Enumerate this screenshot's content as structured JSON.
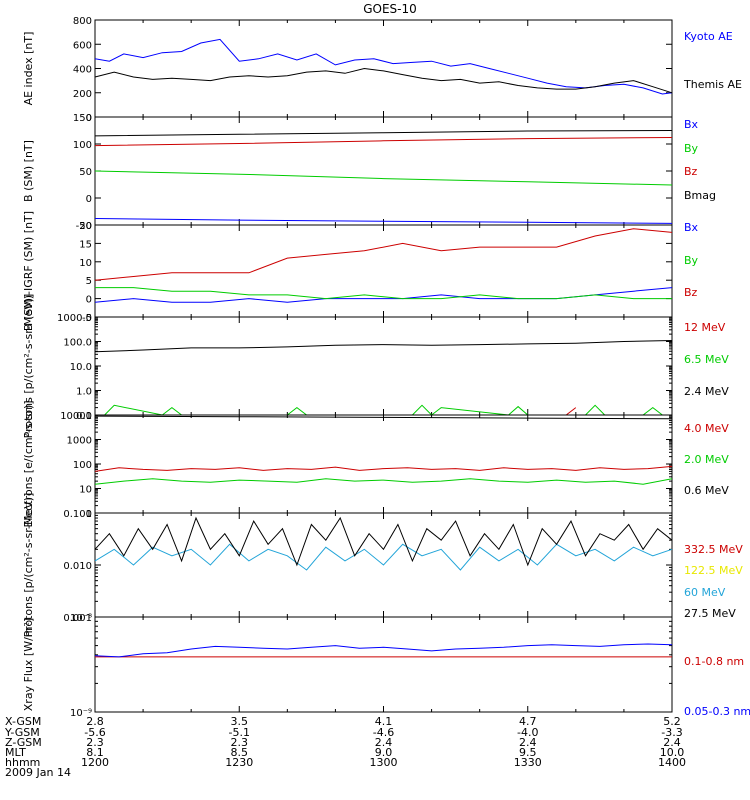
{
  "title": "GOES-10",
  "colors": {
    "black": "#000000",
    "blue": "#0000ff",
    "red": "#cc0000",
    "green": "#00cc00",
    "cyan": "#22a4d8",
    "yellow": "#e8e800"
  },
  "chart_data": [
    {
      "type": "line",
      "ylabel": "AE index [nT]",
      "ylim": [
        0,
        800
      ],
      "scale": "linear",
      "yticks": [
        {
          "v": 0,
          "label": "0"
        },
        {
          "v": 200,
          "label": "200"
        },
        {
          "v": 400,
          "label": "400"
        },
        {
          "v": 600,
          "label": "600"
        },
        {
          "v": 800,
          "label": "800"
        }
      ],
      "series": [
        {
          "name": "Kyoto AE",
          "color": "#0000ff",
          "x": [
            0,
            3,
            6,
            10,
            14,
            18,
            22,
            26,
            30,
            34,
            38,
            42,
            46,
            50,
            54,
            58,
            62,
            66,
            70,
            74,
            78,
            82,
            86,
            90,
            94,
            98,
            102,
            106,
            110,
            114,
            118,
            120
          ],
          "values": [
            480,
            460,
            520,
            490,
            530,
            540,
            610,
            640,
            460,
            480,
            520,
            470,
            520,
            430,
            470,
            480,
            440,
            450,
            460,
            420,
            440,
            400,
            360,
            320,
            280,
            250,
            240,
            260,
            270,
            240,
            190,
            200
          ]
        },
        {
          "name": "Themis AE",
          "color": "#000000",
          "x": [
            0,
            4,
            8,
            12,
            16,
            20,
            24,
            28,
            32,
            36,
            40,
            44,
            48,
            52,
            56,
            60,
            64,
            68,
            72,
            76,
            80,
            84,
            88,
            92,
            96,
            100,
            104,
            108,
            112,
            116,
            120
          ],
          "values": [
            330,
            370,
            330,
            310,
            320,
            310,
            300,
            330,
            340,
            330,
            340,
            370,
            380,
            360,
            400,
            380,
            350,
            320,
            300,
            310,
            280,
            290,
            260,
            240,
            230,
            230,
            250,
            280,
            300,
            250,
            200
          ]
        }
      ]
    },
    {
      "type": "line",
      "ylabel": "B (SM) [nT]",
      "ylim": [
        -50,
        150
      ],
      "scale": "linear",
      "yticks": [
        {
          "v": -50,
          "label": "-50"
        },
        {
          "v": 0,
          "label": "0"
        },
        {
          "v": 50,
          "label": "50"
        },
        {
          "v": 100,
          "label": "100"
        },
        {
          "v": 150,
          "label": "150"
        }
      ],
      "series": [
        {
          "name": "Bx",
          "color": "#0000ff",
          "x": [
            0,
            30,
            60,
            90,
            120
          ],
          "values": [
            -38,
            -41,
            -43,
            -45,
            -47
          ]
        },
        {
          "name": "By",
          "color": "#00cc00",
          "x": [
            0,
            30,
            60,
            90,
            120
          ],
          "values": [
            50,
            44,
            36,
            30,
            24
          ]
        },
        {
          "name": "Bz",
          "color": "#cc0000",
          "x": [
            0,
            30,
            60,
            90,
            120
          ],
          "values": [
            97,
            101,
            106,
            110,
            112
          ]
        },
        {
          "name": "Bmag",
          "color": "#000000",
          "x": [
            0,
            30,
            60,
            90,
            120
          ],
          "values": [
            115,
            118,
            121,
            124,
            125
          ]
        }
      ]
    },
    {
      "type": "line",
      "ylabel": "B (SM)-IGRF (SM) [nT]",
      "ylim": [
        -5,
        20
      ],
      "scale": "linear",
      "yticks": [
        {
          "v": -5,
          "label": "-5"
        },
        {
          "v": 0,
          "label": "0"
        },
        {
          "v": 5,
          "label": "5"
        },
        {
          "v": 10,
          "label": "10"
        },
        {
          "v": 15,
          "label": "15"
        },
        {
          "v": 20,
          "label": "20"
        }
      ],
      "series": [
        {
          "name": "Bx",
          "color": "#0000ff",
          "x": [
            0,
            8,
            16,
            24,
            32,
            40,
            48,
            56,
            64,
            72,
            80,
            88,
            96,
            104,
            112,
            120
          ],
          "values": [
            -1,
            0,
            -1,
            -1,
            0,
            -1,
            0,
            0,
            0,
            1,
            0,
            0,
            0,
            1,
            2,
            3
          ]
        },
        {
          "name": "By",
          "color": "#00cc00",
          "x": [
            0,
            8,
            16,
            24,
            32,
            40,
            48,
            56,
            64,
            72,
            80,
            88,
            96,
            104,
            112,
            120
          ],
          "values": [
            3,
            3,
            2,
            2,
            1,
            1,
            0,
            1,
            0,
            0,
            1,
            0,
            0,
            1,
            0,
            0
          ]
        },
        {
          "name": "Bz",
          "color": "#cc0000",
          "x": [
            0,
            8,
            16,
            24,
            32,
            40,
            48,
            56,
            64,
            72,
            80,
            88,
            96,
            104,
            112,
            120
          ],
          "values": [
            5,
            6,
            7,
            7,
            7,
            11,
            12,
            13,
            15,
            13,
            14,
            14,
            14,
            17,
            19,
            18
          ]
        }
      ]
    },
    {
      "type": "line",
      "ylabel": "Protons [p/(cm²-s-sr-MeV)]",
      "ylim": [
        0.1,
        1000
      ],
      "scale": "log",
      "yticks": [
        {
          "v": 0.1,
          "label": "0.1"
        },
        {
          "v": 1,
          "label": "1.0"
        },
        {
          "v": 10,
          "label": "10.0"
        },
        {
          "v": 100,
          "label": "100.0"
        },
        {
          "v": 1000,
          "label": "1000.0"
        }
      ],
      "series": [
        {
          "name": "12 MeV",
          "color": "#cc0000",
          "x": [
            98,
            100
          ],
          "values": [
            0.1,
            0.2
          ]
        },
        {
          "name": "6.5 MeV",
          "color": "#00cc00",
          "x": [
            2,
            4,
            14,
            16,
            18,
            40,
            42,
            44,
            66,
            68,
            70,
            72,
            86,
            88,
            90,
            102,
            104,
            106,
            114,
            116,
            118
          ],
          "values": [
            0.1,
            0.25,
            0.1,
            0.2,
            0.1,
            0.1,
            0.2,
            0.1,
            0.1,
            0.25,
            0.1,
            0.2,
            0.1,
            0.22,
            0.1,
            0.1,
            0.25,
            0.1,
            0.1,
            0.2,
            0.1
          ]
        },
        {
          "name": "2.4 MeV",
          "color": "#000000",
          "x": [
            0,
            10,
            20,
            30,
            40,
            50,
            60,
            70,
            80,
            90,
            100,
            110,
            120
          ],
          "values": [
            38,
            45,
            55,
            55,
            60,
            70,
            75,
            70,
            75,
            80,
            85,
            100,
            110
          ]
        }
      ]
    },
    {
      "type": "line",
      "ylabel": "Electrons [e/(cm²-s-sr)]",
      "ylim": [
        1,
        10000
      ],
      "scale": "log",
      "yticks": [
        {
          "v": 1,
          "label": "1"
        },
        {
          "v": 10,
          "label": "10"
        },
        {
          "v": 100,
          "label": "100"
        },
        {
          "v": 1000,
          "label": "1000"
        },
        {
          "v": 10000,
          "label": "10000"
        }
      ],
      "series": [
        {
          "name": "4.0 MeV",
          "color": "#cc0000",
          "x": [
            0,
            5,
            10,
            15,
            20,
            25,
            30,
            35,
            40,
            45,
            50,
            55,
            60,
            65,
            70,
            75,
            80,
            85,
            90,
            95,
            100,
            105,
            110,
            115,
            120
          ],
          "values": [
            50,
            70,
            60,
            55,
            65,
            60,
            70,
            55,
            65,
            60,
            75,
            55,
            65,
            70,
            60,
            65,
            55,
            70,
            60,
            65,
            55,
            70,
            60,
            65,
            80
          ]
        },
        {
          "name": "2.0 MeV",
          "color": "#00cc00",
          "x": [
            0,
            6,
            12,
            18,
            24,
            30,
            36,
            42,
            48,
            54,
            60,
            66,
            72,
            78,
            84,
            90,
            96,
            102,
            108,
            114,
            120
          ],
          "values": [
            15,
            20,
            25,
            20,
            18,
            22,
            20,
            18,
            25,
            20,
            22,
            18,
            20,
            25,
            20,
            18,
            22,
            18,
            20,
            15,
            25
          ]
        },
        {
          "name": "0.6 MeV",
          "color": "#000000",
          "x": [
            0,
            30,
            60,
            90,
            120
          ],
          "values": [
            9000,
            8500,
            8000,
            7500,
            7000
          ]
        }
      ]
    },
    {
      "type": "line",
      "ylabel": "Protons [p/(cm²-s-sr-MeV)]",
      "ylim": [
        0.001,
        0.1
      ],
      "scale": "log",
      "yticks": [
        {
          "v": 0.001,
          "label": "0.001"
        },
        {
          "v": 0.01,
          "label": "0.010"
        },
        {
          "v": 0.1,
          "label": "0.100"
        }
      ],
      "series": [
        {
          "name": "60 MeV",
          "color": "#22a4d8",
          "x": [
            0,
            4,
            8,
            12,
            16,
            20,
            24,
            28,
            32,
            36,
            40,
            44,
            48,
            52,
            56,
            60,
            64,
            68,
            72,
            76,
            80,
            84,
            88,
            92,
            96,
            100,
            104,
            108,
            112,
            116,
            120
          ],
          "values": [
            0.012,
            0.02,
            0.01,
            0.022,
            0.015,
            0.02,
            0.01,
            0.025,
            0.012,
            0.02,
            0.015,
            0.008,
            0.022,
            0.012,
            0.02,
            0.01,
            0.025,
            0.015,
            0.02,
            0.008,
            0.022,
            0.012,
            0.02,
            0.01,
            0.025,
            0.015,
            0.02,
            0.012,
            0.022,
            0.015,
            0.02
          ]
        },
        {
          "name": "27.5 MeV",
          "color": "#000000",
          "x": [
            0,
            3,
            6,
            9,
            12,
            15,
            18,
            21,
            24,
            27,
            30,
            33,
            36,
            39,
            42,
            45,
            48,
            51,
            54,
            57,
            60,
            63,
            66,
            69,
            72,
            75,
            78,
            81,
            84,
            87,
            90,
            93,
            96,
            99,
            102,
            105,
            108,
            111,
            114,
            117,
            120
          ],
          "values": [
            0.02,
            0.04,
            0.015,
            0.05,
            0.02,
            0.06,
            0.012,
            0.08,
            0.02,
            0.04,
            0.015,
            0.07,
            0.025,
            0.05,
            0.01,
            0.06,
            0.03,
            0.08,
            0.015,
            0.04,
            0.02,
            0.06,
            0.012,
            0.05,
            0.03,
            0.07,
            0.015,
            0.04,
            0.02,
            0.06,
            0.01,
            0.05,
            0.025,
            0.07,
            0.015,
            0.04,
            0.03,
            0.06,
            0.02,
            0.05,
            0.03
          ]
        }
      ],
      "extra_legend": [
        {
          "name": "332.5 MeV",
          "color": "#cc0000"
        },
        {
          "name": "122.5 MeV",
          "color": "#e8e800"
        }
      ]
    },
    {
      "type": "line",
      "ylabel": "Xray Flux [W/m²]",
      "ylim": [
        1e-09,
        1e-08
      ],
      "scale": "log",
      "yticks": [
        {
          "v": 1e-09,
          "label": "10⁻⁹"
        },
        {
          "v": 1e-08,
          "label": "10⁻⁸"
        }
      ],
      "series": [
        {
          "name": "0.1-0.8 nm",
          "color": "#cc0000",
          "x": [
            0,
            120
          ],
          "values": [
            3.8e-09,
            3.8e-09
          ]
        },
        {
          "name": "0.05-0.3 nm",
          "color": "#0000ff",
          "x": [
            0,
            5,
            10,
            15,
            20,
            25,
            30,
            35,
            40,
            45,
            50,
            55,
            60,
            65,
            70,
            75,
            80,
            85,
            90,
            95,
            100,
            105,
            110,
            115,
            120
          ],
          "values": [
            3.9e-09,
            3.8e-09,
            4.1e-09,
            4.2e-09,
            4.6e-09,
            4.9e-09,
            4.8e-09,
            4.7e-09,
            4.6e-09,
            4.8e-09,
            5e-09,
            4.7e-09,
            4.8e-09,
            4.6e-09,
            4.4e-09,
            4.6e-09,
            4.7e-09,
            4.8e-09,
            5e-09,
            5.1e-09,
            5e-09,
            4.9e-09,
            5.1e-09,
            5.2e-09,
            5.1e-09
          ]
        }
      ]
    }
  ],
  "x_axis": {
    "tick_values": [
      0,
      30,
      60,
      90,
      120
    ],
    "rows": [
      {
        "label": "X-GSM",
        "values": [
          "2.8",
          "3.5",
          "4.1",
          "4.7",
          "5.2"
        ]
      },
      {
        "label": "Y-GSM",
        "values": [
          "-5.6",
          "-5.1",
          "-4.6",
          "-4.0",
          "-3.3"
        ]
      },
      {
        "label": "Z-GSM",
        "values": [
          "2.3",
          "2.3",
          "2.4",
          "2.4",
          "2.4"
        ]
      },
      {
        "label": "MLT",
        "values": [
          "8.1",
          "8.5",
          "9.0",
          "9.5",
          "10.0"
        ]
      },
      {
        "label": "hhmm",
        "values": [
          "1200",
          "1230",
          "1300",
          "1330",
          "1400"
        ]
      }
    ],
    "date": "2009 Jan 14"
  }
}
